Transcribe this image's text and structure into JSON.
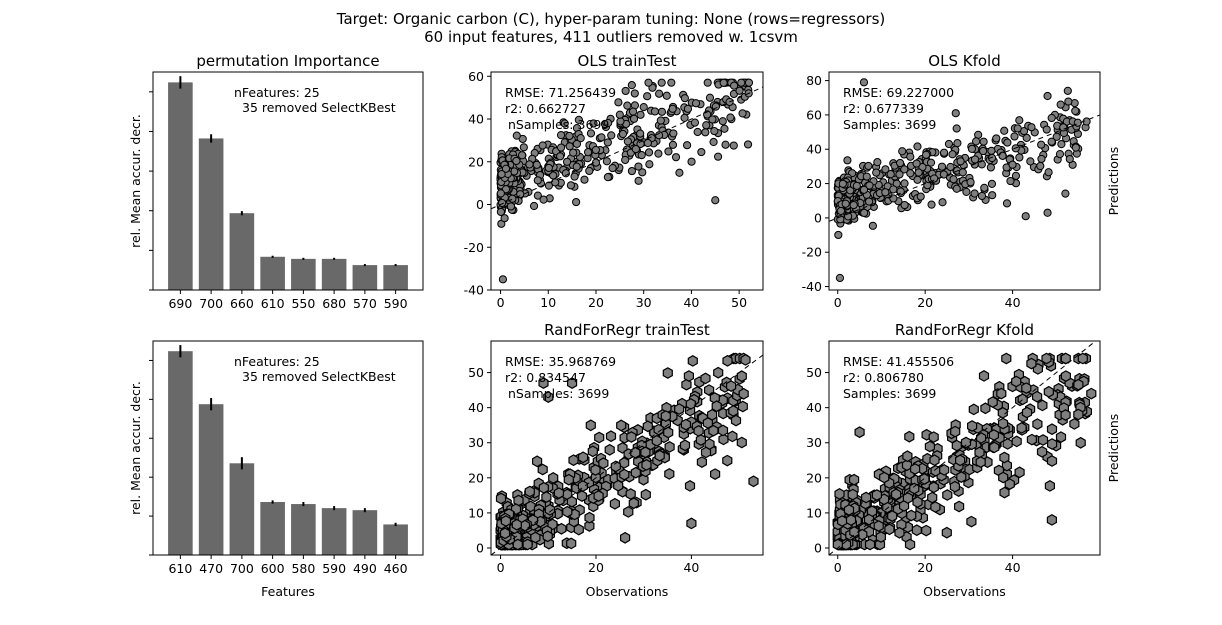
{
  "suptitle": {
    "line1": "Target: Organic carbon (C), hyper-param tuning: None (rows=regressors)",
    "line2": "60 input features, 411 outliers removed w. 1csvm"
  },
  "colors": {
    "bar": "#696969",
    "marker": "#7f7f7f",
    "edge": "#000000"
  },
  "chart_data": [
    {
      "id": "perm1",
      "type": "bar",
      "title": "permutation Importance",
      "ylabel": "rel. Mean accur. decr.",
      "xlabel": "",
      "categories": [
        "690",
        "700",
        "660",
        "610",
        "550",
        "680",
        "570",
        "590"
      ],
      "values": [
        1.0,
        0.73,
        0.37,
        0.16,
        0.15,
        0.15,
        0.12,
        0.12
      ],
      "errors": [
        0.03,
        0.02,
        0.01,
        0.005,
        0.005,
        0.005,
        0.005,
        0.005
      ],
      "ylim": [
        0,
        1.05
      ],
      "annotation": [
        "nFeatures: 25",
        "35 removed SelectKBest"
      ]
    },
    {
      "id": "ols_tt",
      "type": "scatter",
      "marker": "circle",
      "title": "OLS trainTest",
      "xlim": [
        -2,
        55
      ],
      "ylim": [
        -40,
        62
      ],
      "xticks": [
        0,
        10,
        20,
        30,
        40,
        50
      ],
      "yticks": [
        -40,
        -20,
        0,
        20,
        40,
        60
      ],
      "annotation": [
        "RMSE: 71.256439",
        "r2: 0.662727",
        "nSamples: 3699"
      ],
      "trend": {
        "slope": 0.78,
        "intercept": 10,
        "sd": 11
      },
      "outliers": [
        [
          0.5,
          -35
        ],
        [
          31,
          57
        ],
        [
          45,
          2
        ],
        [
          48,
          48
        ],
        [
          52,
          52
        ],
        [
          25,
          42
        ]
      ]
    },
    {
      "id": "ols_kf",
      "type": "scatter",
      "marker": "circle",
      "title": "OLS Kfold",
      "ylabel_right": "Predictions",
      "xlim": [
        -2,
        60
      ],
      "ylim": [
        -42,
        85
      ],
      "xticks": [
        0,
        20,
        40
      ],
      "yticks": [
        -40,
        -20,
        0,
        20,
        40,
        60,
        80
      ],
      "annotation": [
        "RMSE: 69.227000",
        "r2: 0.677339",
        "Samples: 3699"
      ],
      "trend": {
        "slope": 0.72,
        "intercept": 10,
        "sd": 10
      },
      "outliers": [
        [
          0.5,
          -35
        ],
        [
          6,
          79
        ],
        [
          48,
          71
        ],
        [
          51,
          66
        ],
        [
          48,
          3
        ],
        [
          43,
          1
        ],
        [
          27,
          61
        ]
      ]
    },
    {
      "id": "perm2",
      "type": "bar",
      "title": "",
      "ylabel": "rel. Mean accur. decr.",
      "xlabel": "Features",
      "categories": [
        "610",
        "470",
        "700",
        "600",
        "580",
        "590",
        "490",
        "460"
      ],
      "values": [
        1.0,
        0.74,
        0.45,
        0.26,
        0.25,
        0.23,
        0.22,
        0.15
      ],
      "errors": [
        0.03,
        0.03,
        0.03,
        0.008,
        0.01,
        0.01,
        0.01,
        0.008
      ],
      "ylim": [
        0,
        1.05
      ],
      "annotation": [
        "nFeatures: 25",
        "35 removed SelectKBest"
      ]
    },
    {
      "id": "rf_tt",
      "type": "scatter",
      "marker": "hexagon",
      "title": "RandForRegr trainTest",
      "xlabel": "Observations",
      "xlim": [
        -2,
        55
      ],
      "ylim": [
        -2,
        59
      ],
      "xticks": [
        0,
        20,
        40
      ],
      "yticks": [
        0,
        10,
        20,
        30,
        40,
        50
      ],
      "annotation": [
        "RMSE: 35.968769",
        "r2: 0.834547",
        "nSamples: 3699"
      ],
      "trend": {
        "slope": 0.85,
        "intercept": 2,
        "sd": 7
      },
      "outliers": [
        [
          9,
          47
        ],
        [
          40,
          7
        ],
        [
          53,
          19
        ],
        [
          10,
          43
        ],
        [
          15,
          47
        ]
      ]
    },
    {
      "id": "rf_kf",
      "type": "scatter",
      "marker": "hexagon",
      "title": "RandForRegr Kfold",
      "xlabel": "Observations",
      "ylabel_right": "Predictions",
      "xlim": [
        -2,
        60
      ],
      "ylim": [
        -2,
        59
      ],
      "xticks": [
        0,
        20,
        40
      ],
      "yticks": [
        0,
        10,
        20,
        30,
        40,
        50
      ],
      "annotation": [
        "RMSE: 41.455506",
        "r2: 0.806780",
        "Samples: 3699"
      ],
      "trend": {
        "slope": 0.8,
        "intercept": 3,
        "sd": 8
      },
      "outliers": [
        [
          49,
          8
        ],
        [
          58,
          44
        ],
        [
          28,
          25
        ],
        [
          5,
          33
        ]
      ]
    }
  ]
}
